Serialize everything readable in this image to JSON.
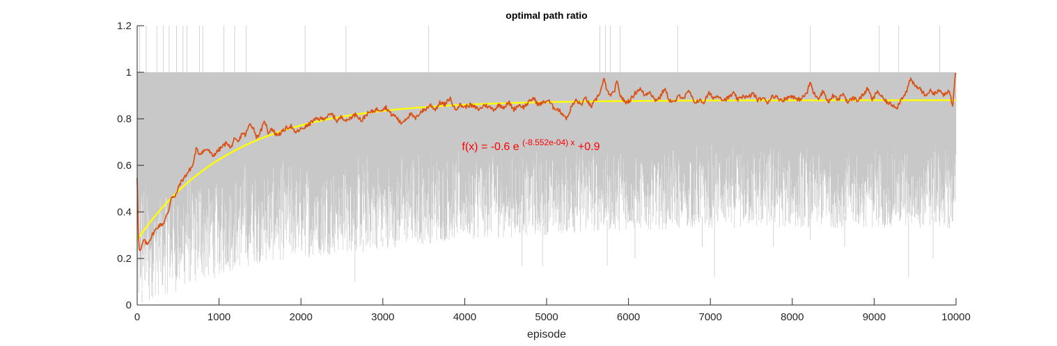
{
  "chart_data": {
    "type": "line",
    "title": "optimal path ratio",
    "xlabel": "episode",
    "ylabel": "",
    "xlim": [
      0,
      10000
    ],
    "ylim": [
      0,
      1.2
    ],
    "x_ticks": [
      0,
      1000,
      2000,
      3000,
      4000,
      5000,
      6000,
      7000,
      8000,
      9000,
      10000
    ],
    "x_tick_labels": [
      "0",
      "1000",
      "2000",
      "3000",
      "4000",
      "5000",
      "6000",
      "7000",
      "8000",
      "9000",
      "10000"
    ],
    "y_ticks": [
      0,
      0.2,
      0.4,
      0.6,
      0.8,
      1.0,
      1.2
    ],
    "y_tick_labels": [
      "0",
      "0.2",
      "0.4",
      "0.6",
      "0.8",
      "1",
      "1.2"
    ],
    "grid": false,
    "legend": "none",
    "annotation": {
      "prefix": "f(x) = -0.6 e",
      "exponent": "(-8.552e-04) x",
      "suffix": "+0.9",
      "anchor_x": 4000,
      "anchor_y": 0.68,
      "color": "#ff0000"
    },
    "series": [
      {
        "role": "raw",
        "color": "#c8c8c8",
        "envelope": {
          "x": [
            0,
            100,
            200,
            300,
            400,
            500,
            600,
            800,
            1000,
            1200,
            1500,
            2000,
            2500,
            3000,
            3500,
            4000,
            5000,
            6000,
            7000,
            8000,
            9000,
            10000
          ],
          "lower": [
            0.0,
            0.02,
            0.03,
            0.04,
            0.05,
            0.06,
            0.08,
            0.1,
            0.12,
            0.15,
            0.18,
            0.2,
            0.22,
            0.24,
            0.26,
            0.28,
            0.3,
            0.32,
            0.33,
            0.33,
            0.33,
            0.33
          ],
          "upper": [
            1.0,
            1.0,
            1.0,
            1.0,
            1.0,
            1.0,
            1.0,
            1.0,
            1.0,
            1.0,
            1.0,
            1.0,
            1.0,
            1.0,
            1.0,
            1.0,
            1.0,
            1.0,
            1.0,
            1.0,
            1.0,
            1.0
          ]
        },
        "spikes": [
          {
            "x": 20,
            "y": 0.1
          },
          {
            "x": 60,
            "y": 0.01
          },
          {
            "x": 150,
            "y": 0.02
          },
          {
            "x": 30,
            "y": 1.2
          },
          {
            "x": 110,
            "y": 1.2
          },
          {
            "x": 240,
            "y": 1.2
          },
          {
            "x": 320,
            "y": 1.2
          },
          {
            "x": 390,
            "y": 1.2
          },
          {
            "x": 480,
            "y": 1.2
          },
          {
            "x": 560,
            "y": 1.2
          },
          {
            "x": 610,
            "y": 1.2
          },
          {
            "x": 760,
            "y": 1.2
          },
          {
            "x": 800,
            "y": 1.2
          },
          {
            "x": 1060,
            "y": 1.2
          },
          {
            "x": 1190,
            "y": 1.2
          },
          {
            "x": 1330,
            "y": 1.2
          },
          {
            "x": 2050,
            "y": 1.2
          },
          {
            "x": 2550,
            "y": 1.2
          },
          {
            "x": 3560,
            "y": 1.2
          },
          {
            "x": 5650,
            "y": 1.2
          },
          {
            "x": 5720,
            "y": 1.2
          },
          {
            "x": 5780,
            "y": 1.2
          },
          {
            "x": 5900,
            "y": 1.2
          },
          {
            "x": 6600,
            "y": 1.2
          },
          {
            "x": 8220,
            "y": 1.2
          },
          {
            "x": 9060,
            "y": 1.2
          },
          {
            "x": 9300,
            "y": 1.2
          },
          {
            "x": 9800,
            "y": 1.2
          },
          {
            "x": 2660,
            "y": 0.1
          },
          {
            "x": 2760,
            "y": 0.23
          },
          {
            "x": 3000,
            "y": 0.25
          },
          {
            "x": 4700,
            "y": 0.17
          },
          {
            "x": 4950,
            "y": 0.17
          },
          {
            "x": 5740,
            "y": 0.17
          },
          {
            "x": 6080,
            "y": 0.2
          },
          {
            "x": 6900,
            "y": 0.25
          },
          {
            "x": 7050,
            "y": 0.12
          },
          {
            "x": 7770,
            "y": 0.25
          },
          {
            "x": 8220,
            "y": 0.28
          },
          {
            "x": 8640,
            "y": 0.25
          },
          {
            "x": 9420,
            "y": 0.12
          },
          {
            "x": 9720,
            "y": 0.2
          },
          {
            "x": 9920,
            "y": 0.33
          }
        ]
      },
      {
        "role": "moving-average",
        "color": "#d95319",
        "x": [
          0,
          20,
          40,
          80,
          120,
          200,
          260,
          320,
          380,
          420,
          460,
          520,
          580,
          620,
          680,
          720,
          760,
          800,
          860,
          920,
          980,
          1040,
          1100,
          1140,
          1180,
          1240,
          1280,
          1320,
          1380,
          1420,
          1460,
          1500,
          1560,
          1600,
          1640,
          1700,
          1760,
          1820,
          1880,
          1920,
          1980,
          2020,
          2080,
          2140,
          2200,
          2260,
          2320,
          2380,
          2440,
          2500,
          2560,
          2620,
          2680,
          2740,
          2800,
          2860,
          2920,
          2980,
          3040,
          3100,
          3160,
          3220,
          3280,
          3340,
          3400,
          3460,
          3520,
          3580,
          3640,
          3700,
          3760,
          3820,
          3880,
          3940,
          4000,
          4060,
          4120,
          4180,
          4240,
          4300,
          4360,
          4420,
          4480,
          4540,
          4600,
          4660,
          4720,
          4780,
          4840,
          4900,
          4960,
          5020,
          5080,
          5140,
          5200,
          5250,
          5300,
          5360,
          5420,
          5480,
          5540,
          5600,
          5660,
          5700,
          5760,
          5820,
          5860,
          5900,
          5960,
          6020,
          6080,
          6140,
          6200,
          6260,
          6320,
          6380,
          6440,
          6500,
          6560,
          6620,
          6680,
          6740,
          6800,
          6860,
          6920,
          6980,
          7040,
          7100,
          7160,
          7220,
          7280,
          7340,
          7400,
          7460,
          7520,
          7580,
          7640,
          7700,
          7760,
          7820,
          7880,
          7940,
          8000,
          8060,
          8120,
          8180,
          8220,
          8260,
          8320,
          8380,
          8440,
          8500,
          8560,
          8620,
          8680,
          8740,
          8800,
          8860,
          8920,
          8980,
          9040,
          9100,
          9160,
          9220,
          9280,
          9340,
          9400,
          9440,
          9500,
          9560,
          9620,
          9680,
          9740,
          9800,
          9860,
          9920,
          9960,
          9990,
          10000
        ],
        "y": [
          0.55,
          0.24,
          0.23,
          0.28,
          0.26,
          0.31,
          0.34,
          0.35,
          0.4,
          0.47,
          0.46,
          0.52,
          0.55,
          0.57,
          0.6,
          0.67,
          0.65,
          0.66,
          0.67,
          0.64,
          0.66,
          0.68,
          0.7,
          0.67,
          0.71,
          0.7,
          0.74,
          0.73,
          0.78,
          0.76,
          0.72,
          0.74,
          0.79,
          0.74,
          0.76,
          0.73,
          0.74,
          0.76,
          0.77,
          0.74,
          0.75,
          0.76,
          0.77,
          0.79,
          0.8,
          0.8,
          0.81,
          0.82,
          0.79,
          0.81,
          0.79,
          0.81,
          0.82,
          0.79,
          0.82,
          0.83,
          0.84,
          0.84,
          0.85,
          0.82,
          0.81,
          0.78,
          0.8,
          0.82,
          0.8,
          0.83,
          0.84,
          0.86,
          0.84,
          0.87,
          0.86,
          0.89,
          0.84,
          0.86,
          0.85,
          0.86,
          0.85,
          0.84,
          0.86,
          0.85,
          0.84,
          0.86,
          0.85,
          0.87,
          0.84,
          0.86,
          0.85,
          0.87,
          0.89,
          0.86,
          0.87,
          0.88,
          0.85,
          0.84,
          0.82,
          0.8,
          0.85,
          0.88,
          0.86,
          0.89,
          0.85,
          0.88,
          0.92,
          0.97,
          0.9,
          0.91,
          0.96,
          0.9,
          0.87,
          0.88,
          0.91,
          0.93,
          0.9,
          0.92,
          0.88,
          0.89,
          0.93,
          0.88,
          0.87,
          0.9,
          0.89,
          0.92,
          0.87,
          0.88,
          0.87,
          0.91,
          0.89,
          0.9,
          0.88,
          0.89,
          0.91,
          0.88,
          0.9,
          0.89,
          0.91,
          0.88,
          0.89,
          0.87,
          0.9,
          0.89,
          0.88,
          0.89,
          0.9,
          0.88,
          0.89,
          0.91,
          0.96,
          0.91,
          0.89,
          0.92,
          0.87,
          0.9,
          0.88,
          0.91,
          0.87,
          0.89,
          0.88,
          0.9,
          0.93,
          0.88,
          0.92,
          0.89,
          0.87,
          0.86,
          0.85,
          0.89,
          0.92,
          0.97,
          0.94,
          0.93,
          0.9,
          0.92,
          0.91,
          0.92,
          0.9,
          0.92,
          0.85,
          1.0,
          1.0
        ]
      },
      {
        "role": "fit",
        "color": "#ffff00",
        "equation": "f(x) = -0.6 e^((-8.552e-04) x) + 0.9",
        "params": {
          "a": -0.6,
          "k": -0.0008552,
          "c": 0.88
        }
      }
    ]
  }
}
